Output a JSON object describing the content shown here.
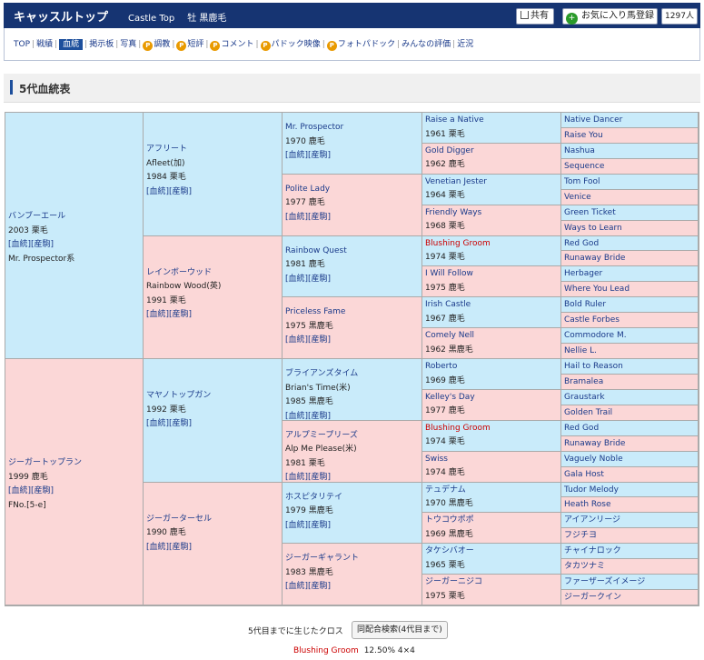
{
  "header": {
    "title": "キャッスルトップ",
    "subtitle": "Castle Top",
    "sexcolor": "牡  黒鹿毛",
    "share_label": "共有",
    "fav_label": "お気に入り馬登録",
    "fav_count": "1297人"
  },
  "nav": {
    "items": [
      "TOP",
      "戦績",
      "血統",
      "掲示板",
      "写真",
      "調教",
      "短評",
      "コメント",
      "パドック映像",
      "フォトパドック",
      "みんなの評価",
      "近況"
    ],
    "active": 2,
    "premium": [
      5,
      6,
      7,
      8,
      9
    ]
  },
  "section_title": "5代血統表",
  "pedigree": {
    "g1": [
      {
        "lines": [
          "バンブーエール",
          "2003 栗毛",
          "[血統][産駒]",
          "Mr. Prospector系"
        ],
        "sex": "m"
      },
      {
        "lines": [
          "ジーガートップラン",
          "1999 鹿毛",
          "[血統][産駒]",
          "FNo.[5-e]"
        ],
        "sex": "f"
      }
    ],
    "g2": [
      {
        "lines": [
          "アフリート",
          "Afleet(加)",
          "1984 栗毛",
          "[血統][産駒]"
        ],
        "sex": "m"
      },
      {
        "lines": [
          "レインボーウッド",
          "Rainbow Wood(英)",
          "1991 栗毛",
          "[血統][産駒]"
        ],
        "sex": "f"
      },
      {
        "lines": [
          "マヤノトップガン",
          "1992 栗毛",
          "[血統][産駒]"
        ],
        "sex": "m"
      },
      {
        "lines": [
          "ジーガーターセル",
          "1990 鹿毛",
          "[血統][産駒]"
        ],
        "sex": "f"
      }
    ],
    "g3": [
      {
        "lines": [
          "Mr. Prospector",
          "1970 鹿毛",
          "[血統][産駒]"
        ],
        "sex": "m"
      },
      {
        "lines": [
          "Polite Lady",
          "1977 鹿毛",
          "[血統][産駒]"
        ],
        "sex": "f"
      },
      {
        "lines": [
          "Rainbow Quest",
          "1981 鹿毛",
          "[血統][産駒]"
        ],
        "sex": "m"
      },
      {
        "lines": [
          "Priceless Fame",
          "1975 黒鹿毛",
          "[血統][産駒]"
        ],
        "sex": "f"
      },
      {
        "lines": [
          "ブライアンズタイム",
          "Brian's Time(米)",
          "1985 黒鹿毛",
          "[血統][産駒]"
        ],
        "sex": "m"
      },
      {
        "lines": [
          "アルプミープリーズ",
          "Alp Me Please(米)",
          "1981 栗毛",
          "[血統][産駒]"
        ],
        "sex": "f"
      },
      {
        "lines": [
          "ホスピタリテイ",
          "1979 黒鹿毛",
          "[血統][産駒]"
        ],
        "sex": "m"
      },
      {
        "lines": [
          "ジーガーギャラント",
          "1983 黒鹿毛",
          "[血統][産駒]"
        ],
        "sex": "f"
      }
    ],
    "g4": [
      {
        "lines": [
          "Raise a Native",
          "1961 栗毛"
        ],
        "sex": "m"
      },
      {
        "lines": [
          "Gold Digger",
          "1962 鹿毛"
        ],
        "sex": "f"
      },
      {
        "lines": [
          "Venetian Jester",
          "1964 栗毛"
        ],
        "sex": "m"
      },
      {
        "lines": [
          "Friendly Ways",
          "1968 栗毛"
        ],
        "sex": "f"
      },
      {
        "lines": [
          "Blushing Groom",
          "1974 栗毛"
        ],
        "sex": "m",
        "cross": true
      },
      {
        "lines": [
          "I Will Follow",
          "1975 鹿毛"
        ],
        "sex": "f"
      },
      {
        "lines": [
          "Irish Castle",
          "1967 鹿毛"
        ],
        "sex": "m"
      },
      {
        "lines": [
          "Comely Nell",
          "1962 黒鹿毛"
        ],
        "sex": "f"
      },
      {
        "lines": [
          "Roberto",
          "1969 鹿毛"
        ],
        "sex": "m"
      },
      {
        "lines": [
          "Kelley's Day",
          "1977 鹿毛"
        ],
        "sex": "f"
      },
      {
        "lines": [
          "Blushing Groom",
          "1974 栗毛"
        ],
        "sex": "m",
        "cross": true
      },
      {
        "lines": [
          "Swiss",
          "1974 鹿毛"
        ],
        "sex": "f"
      },
      {
        "lines": [
          "テュデナム",
          "1970 黒鹿毛"
        ],
        "sex": "m"
      },
      {
        "lines": [
          "トウコウポポ",
          "1969 黒鹿毛"
        ],
        "sex": "f"
      },
      {
        "lines": [
          "タケシバオー",
          "1965 栗毛"
        ],
        "sex": "m"
      },
      {
        "lines": [
          "ジーガーニジコ",
          "1975 栗毛"
        ],
        "sex": "f"
      }
    ],
    "g5": [
      "Native Dancer",
      "Raise You",
      "Nashua",
      "Sequence",
      "Tom Fool",
      "Venice",
      "Green Ticket",
      "Ways to Learn",
      "Red God",
      "Runaway Bride",
      "Herbager",
      "Where You Lead",
      "Bold Ruler",
      "Castle Forbes",
      "Commodore M.",
      "Nellie L.",
      "Hail to Reason",
      "Bramalea",
      "Graustark",
      "Golden Trail",
      "Red God",
      "Runaway Bride",
      "Vaguely Noble",
      "Gala Host",
      "Tudor Melody",
      "Heath Rose",
      "アイアンリージ",
      "フジチヨ",
      "チャイナロック",
      "タカツナミ",
      "ファーザーズイメージ",
      "ジーガークイン"
    ]
  },
  "footer": {
    "cross_label": "5代目までに生じたクロス",
    "search_button": "同配合検索(4代目まで)",
    "cross_name": "Blushing Groom",
    "cross_detail": "12.50%  4×4"
  }
}
